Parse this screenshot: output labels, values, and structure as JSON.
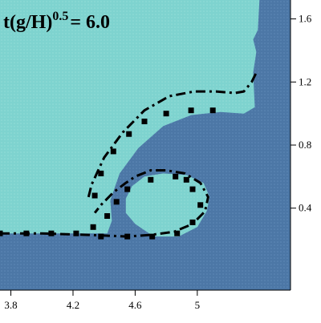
{
  "chart_data": {
    "type": "scatter",
    "title": "t(g/H)",
    "title_exponent": "0.5",
    "title_value": "= 6.0",
    "xlabel": "",
    "ylabel": "",
    "xlim": [
      3.73,
      5.6
    ],
    "ylim": [
      -0.12,
      1.72
    ],
    "x_ticks": [
      3.8,
      4.2,
      4.6,
      5
    ],
    "x_tick_labels": [
      "3.8",
      "4.2",
      "4.6",
      "5"
    ],
    "y_ticks": [
      0.4,
      0.8,
      1.2,
      1.6
    ],
    "y_tick_labels": [
      "0.4",
      "0.8",
      "1.2",
      "1.6"
    ],
    "colors": {
      "light_fluid": "#7ed3cf",
      "dark_fluid": "#4c77a6",
      "curve": "#000000",
      "markers": "#000000"
    },
    "dark_region_outline": [
      [
        3.73,
        0.24
      ],
      [
        4.3,
        0.24
      ],
      [
        4.42,
        0.24
      ],
      [
        4.45,
        0.32
      ],
      [
        4.44,
        0.45
      ],
      [
        4.5,
        0.62
      ],
      [
        4.62,
        0.78
      ],
      [
        4.78,
        0.92
      ],
      [
        4.96,
        0.99
      ],
      [
        5.15,
        1.01
      ],
      [
        5.3,
        1.0
      ],
      [
        5.37,
        1.04
      ],
      [
        5.36,
        1.26
      ],
      [
        5.38,
        1.39
      ],
      [
        5.36,
        1.47
      ],
      [
        5.39,
        1.53
      ],
      [
        5.4,
        1.72
      ],
      [
        5.6,
        1.72
      ],
      [
        5.6,
        -0.12
      ],
      [
        3.73,
        -0.12
      ]
    ],
    "bubble_outline": [
      [
        4.6,
        0.3
      ],
      [
        4.72,
        0.22
      ],
      [
        4.88,
        0.22
      ],
      [
        5.0,
        0.28
      ],
      [
        5.06,
        0.38
      ],
      [
        5.08,
        0.47
      ],
      [
        5.04,
        0.56
      ],
      [
        4.93,
        0.61
      ],
      [
        4.78,
        0.62
      ],
      [
        4.66,
        0.6
      ],
      [
        4.58,
        0.54
      ],
      [
        4.54,
        0.46
      ],
      [
        4.54,
        0.37
      ]
    ],
    "series": [
      {
        "style": "dash-dot",
        "x": [
          3.73,
          4.0,
          4.3,
          4.55,
          4.7,
          4.85,
          4.97,
          5.05,
          5.07,
          5.02,
          4.92,
          4.8,
          4.7,
          4.6,
          4.54,
          4.46,
          4.38,
          4.34
        ],
        "y": [
          0.24,
          0.24,
          0.23,
          0.22,
          0.23,
          0.25,
          0.3,
          0.38,
          0.47,
          0.56,
          0.62,
          0.64,
          0.64,
          0.6,
          0.56,
          0.5,
          0.42,
          0.37
        ]
      },
      {
        "style": "dash-dot",
        "x": [
          4.3,
          4.32,
          4.4,
          4.52,
          4.66,
          4.82,
          4.98,
          5.12,
          5.24,
          5.3,
          5.35,
          5.38
        ],
        "y": [
          0.47,
          0.55,
          0.72,
          0.88,
          1.02,
          1.11,
          1.14,
          1.14,
          1.13,
          1.14,
          1.2,
          1.26
        ]
      },
      {
        "style": "markers",
        "x": [
          3.73,
          3.9,
          4.06,
          4.22,
          4.38,
          4.55,
          4.71,
          4.87,
          4.97,
          5.02,
          4.97,
          4.93,
          4.86,
          4.7,
          4.55,
          4.48,
          4.42,
          4.33,
          4.34,
          4.38,
          4.46,
          4.56,
          4.66,
          4.8,
          4.96,
          5.1
        ],
        "y": [
          0.24,
          0.24,
          0.24,
          0.24,
          0.22,
          0.22,
          0.22,
          0.24,
          0.31,
          0.42,
          0.52,
          0.58,
          0.6,
          0.58,
          0.52,
          0.44,
          0.35,
          0.28,
          0.48,
          0.62,
          0.76,
          0.87,
          0.95,
          1.0,
          1.02,
          1.02
        ]
      }
    ]
  }
}
